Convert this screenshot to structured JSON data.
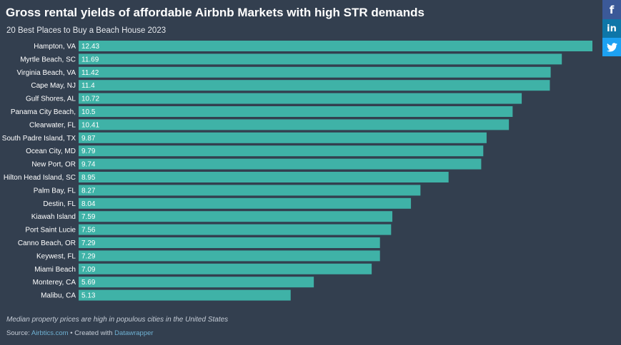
{
  "header": {
    "title": "Gross rental yields of affordable Airbnb Markets with high STR demands",
    "subtitle": "20 Best Places to Buy a Beach House 2023"
  },
  "footer": {
    "note": "Median property prices are high in populous cities in the United States",
    "source_prefix": "Source: ",
    "source_name": "Airbtics.com",
    "created_with": " • Created with ",
    "tool_name": "Datawrapper"
  },
  "social": {
    "facebook_glyph": "f",
    "linkedin_glyph": "in",
    "twitter_glyph": "🐦"
  },
  "colors": {
    "background": "#333f4f",
    "bar": "#3fb2a7"
  },
  "chart_data": {
    "type": "bar",
    "orientation": "horizontal",
    "title": "Gross rental yields of affordable Airbnb Markets with high STR demands",
    "subtitle": "20 Best Places to Buy a Beach House 2023",
    "xlabel": "",
    "ylabel": "",
    "categories": [
      "Hampton, VA",
      "Myrtle Beach, SC",
      "Virginia Beach, VA",
      "Cape May, NJ",
      "Gulf Shores, AL",
      "Panama City Beach,",
      "Clearwater, FL",
      "South Padre Island, TX",
      "Ocean City, MD",
      "New Port, OR",
      "Hilton Head Island, SC",
      "Palm Bay, FL",
      "Destin, FL",
      "Kiawah Island",
      "Port Saint Lucie",
      "Canno Beach, OR",
      "Keywest, FL",
      "Miami Beach",
      "Monterey, CA",
      "Malibu, CA"
    ],
    "values": [
      12.43,
      11.69,
      11.42,
      11.4,
      10.72,
      10.5,
      10.41,
      9.87,
      9.79,
      9.74,
      8.95,
      8.27,
      8.04,
      7.59,
      7.56,
      7.29,
      7.29,
      7.09,
      5.69,
      5.13
    ],
    "value_labels": [
      "12.43",
      "11.69",
      "11.42",
      "11.4",
      "10.72",
      "10.5",
      "10.41",
      "9.87",
      "9.79",
      "9.74",
      "8.95",
      "8.27",
      "8.04",
      "7.59",
      "7.56",
      "7.29",
      "7.29",
      "7.09",
      "5.69",
      "5.13"
    ],
    "xlim": [
      0,
      12.43
    ],
    "grid": false,
    "legend": "none"
  }
}
